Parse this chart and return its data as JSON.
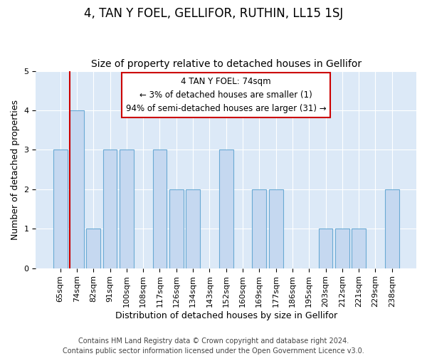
{
  "title": "4, TAN Y FOEL, GELLIFOR, RUTHIN, LL15 1SJ",
  "subtitle": "Size of property relative to detached houses in Gellifor",
  "xlabel": "Distribution of detached houses by size in Gellifor",
  "ylabel": "Number of detached properties",
  "categories": [
    "65sqm",
    "74sqm",
    "82sqm",
    "91sqm",
    "100sqm",
    "108sqm",
    "117sqm",
    "126sqm",
    "134sqm",
    "143sqm",
    "152sqm",
    "160sqm",
    "169sqm",
    "177sqm",
    "186sqm",
    "195sqm",
    "203sqm",
    "212sqm",
    "221sqm",
    "229sqm",
    "238sqm"
  ],
  "values": [
    3,
    4,
    1,
    3,
    3,
    0,
    3,
    2,
    2,
    0,
    3,
    0,
    2,
    2,
    0,
    0,
    1,
    1,
    1,
    0,
    2
  ],
  "highlight_index": 1,
  "highlight_color": "#cc0000",
  "bar_color": "#c5d8f0",
  "bar_edge_color": "#6aaad4",
  "ylim": [
    0,
    5
  ],
  "yticks": [
    0,
    1,
    2,
    3,
    4,
    5
  ],
  "annotation_line1": "4 TAN Y FOEL: 74sqm",
  "annotation_line2": "← 3% of detached houses are smaller (1)",
  "annotation_line3": "94% of semi-detached houses are larger (31) →",
  "footer_line1": "Contains HM Land Registry data © Crown copyright and database right 2024.",
  "footer_line2": "Contains public sector information licensed under the Open Government Licence v3.0.",
  "background_color": "#ffffff",
  "plot_background_color": "#dce9f7",
  "grid_color": "#ffffff",
  "title_fontsize": 12,
  "subtitle_fontsize": 10,
  "xlabel_fontsize": 9,
  "ylabel_fontsize": 9,
  "tick_fontsize": 8,
  "footer_fontsize": 7
}
